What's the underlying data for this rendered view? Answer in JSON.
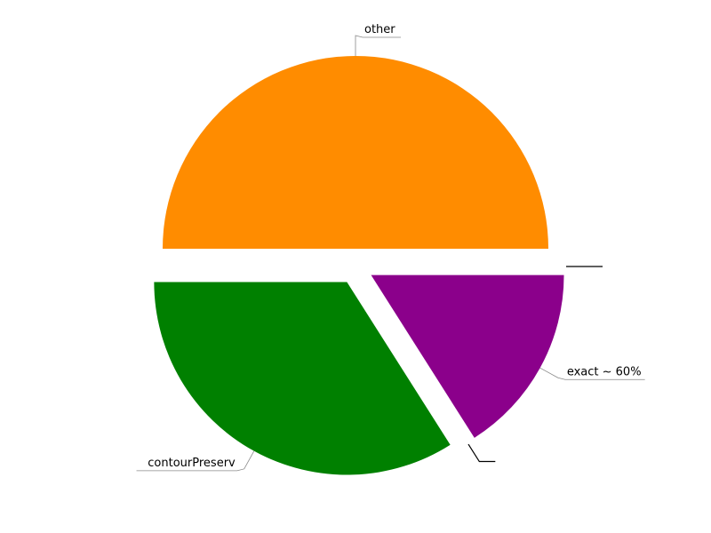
{
  "chart_data": {
    "type": "pie",
    "slices": [
      {
        "label": "other",
        "value": 50.0,
        "color": "#ff8c00"
      },
      {
        "label": "contourPreserv",
        "value": 34.0,
        "color": "#008000"
      },
      {
        "label": "",
        "value": 0.0,
        "color": "#000000"
      },
      {
        "label": "exact ~ 60%",
        "value": 16.0,
        "color": "#8b008b"
      },
      {
        "label": "",
        "value": 0.0,
        "color": "#000000"
      }
    ],
    "exploded": true
  }
}
